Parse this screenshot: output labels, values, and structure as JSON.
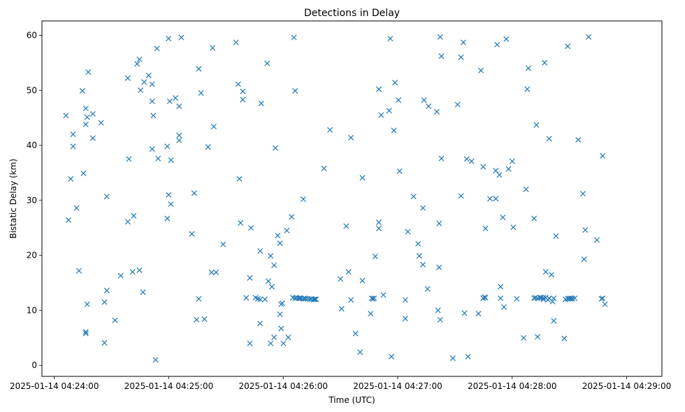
{
  "chart_data": {
    "type": "scatter",
    "title": "Detections in Delay",
    "xlabel": "Time (UTC)",
    "ylabel": "Bistatic Delay (km)",
    "marker": "x",
    "color": "#1f77b4",
    "grid": false,
    "x_tick_labels": [
      "2025-01-14 04:24:00",
      "2025-01-14 04:25:00",
      "2025-01-14 04:26:00",
      "2025-01-14 04:27:00",
      "2025-01-14 04:28:00",
      "2025-01-14 04:29:00"
    ],
    "y_ticks": [
      0,
      10,
      20,
      30,
      40,
      50,
      60
    ],
    "x_range_seconds_after_042400": [
      -6.5,
      318.5
    ],
    "ylim": [
      -2.0,
      62.6
    ],
    "points": [
      [
        6.1,
        45.4
      ],
      [
        7.4,
        26.4
      ],
      [
        8.6,
        33.9
      ],
      [
        9.8,
        39.8
      ],
      [
        9.8,
        42.0
      ],
      [
        11.6,
        28.6
      ],
      [
        12.9,
        17.2
      ],
      [
        14.7,
        49.9
      ],
      [
        15.3,
        34.9
      ],
      [
        16.5,
        46.7
      ],
      [
        16.5,
        43.8
      ],
      [
        16.5,
        6.1
      ],
      [
        16.5,
        5.8
      ],
      [
        17.2,
        45.1
      ],
      [
        17.2,
        11.1
      ],
      [
        17.8,
        53.3
      ],
      [
        20.2,
        45.7
      ],
      [
        20.2,
        41.3
      ],
      [
        24.5,
        44.1
      ],
      [
        26.3,
        4.1
      ],
      [
        26.3,
        11.5
      ],
      [
        27.5,
        13.6
      ],
      [
        27.5,
        30.7
      ],
      [
        31.8,
        8.2
      ],
      [
        34.8,
        16.3
      ],
      [
        38.5,
        52.2
      ],
      [
        38.5,
        26.1
      ],
      [
        39.1,
        37.5
      ],
      [
        41.0,
        17.0
      ],
      [
        41.6,
        27.2
      ],
      [
        43.4,
        54.8
      ],
      [
        44.6,
        55.6
      ],
      [
        44.6,
        17.3
      ],
      [
        45.2,
        50.0
      ],
      [
        46.5,
        13.3
      ],
      [
        47.1,
        51.5
      ],
      [
        49.5,
        52.7
      ],
      [
        51.3,
        51.1
      ],
      [
        51.3,
        48.0
      ],
      [
        51.9,
        45.4
      ],
      [
        51.3,
        39.3
      ],
      [
        53.1,
        1.0
      ],
      [
        53.8,
        57.6
      ],
      [
        54.4,
        37.6
      ],
      [
        59.2,
        39.8
      ],
      [
        59.2,
        26.7
      ],
      [
        59.9,
        59.4
      ],
      [
        59.9,
        31.0
      ],
      [
        60.5,
        48.0
      ],
      [
        61.1,
        37.3
      ],
      [
        61.1,
        29.3
      ],
      [
        63.5,
        48.6
      ],
      [
        65.4,
        47.1
      ],
      [
        65.4,
        41.8
      ],
      [
        65.4,
        40.9
      ],
      [
        66.6,
        59.6
      ],
      [
        72.1,
        23.9
      ],
      [
        73.3,
        31.3
      ],
      [
        74.5,
        8.3
      ],
      [
        75.7,
        12.1
      ],
      [
        75.7,
        53.9
      ],
      [
        76.9,
        49.5
      ],
      [
        78.7,
        8.4
      ],
      [
        80.6,
        39.7
      ],
      [
        82.4,
        16.9
      ],
      [
        83.0,
        57.7
      ],
      [
        83.6,
        43.4
      ],
      [
        84.8,
        16.9
      ],
      [
        88.5,
        22.0
      ],
      [
        95.2,
        58.7
      ],
      [
        96.4,
        51.1
      ],
      [
        97.0,
        33.9
      ],
      [
        97.6,
        25.9
      ],
      [
        98.8,
        48.3
      ],
      [
        98.8,
        49.8
      ],
      [
        100.6,
        12.3
      ],
      [
        102.5,
        15.9
      ],
      [
        102.5,
        4.0
      ],
      [
        103.1,
        25.0
      ],
      [
        105.5,
        12.3
      ],
      [
        106.7,
        12.1
      ],
      [
        107.9,
        12.0
      ],
      [
        107.9,
        7.6
      ],
      [
        107.9,
        20.8
      ],
      [
        108.5,
        47.6
      ],
      [
        110.4,
        12.0
      ],
      [
        111.6,
        54.9
      ],
      [
        112.2,
        15.3
      ],
      [
        113.4,
        19.9
      ],
      [
        113.4,
        4.0
      ],
      [
        114.0,
        14.3
      ],
      [
        115.2,
        5.1
      ],
      [
        115.2,
        18.2
      ],
      [
        115.9,
        39.5
      ],
      [
        117.1,
        23.6
      ],
      [
        118.3,
        9.3
      ],
      [
        118.3,
        22.2
      ],
      [
        118.9,
        11.1
      ],
      [
        118.9,
        6.7
      ],
      [
        119.5,
        11.3
      ],
      [
        120.1,
        4.0
      ],
      [
        121.9,
        24.5
      ],
      [
        122.6,
        5.1
      ],
      [
        124.4,
        27.0
      ],
      [
        125.0,
        12.3
      ],
      [
        125.6,
        59.6
      ],
      [
        126.2,
        12.2
      ],
      [
        126.2,
        49.9
      ],
      [
        126.8,
        12.3
      ],
      [
        128.0,
        12.2
      ],
      [
        128.6,
        12.2
      ],
      [
        129.2,
        12.2
      ],
      [
        130.5,
        12.1
      ],
      [
        130.5,
        30.2
      ],
      [
        131.1,
        12.2
      ],
      [
        131.7,
        12.1
      ],
      [
        132.9,
        12.1
      ],
      [
        134.1,
        12.0
      ],
      [
        134.7,
        12.1
      ],
      [
        135.9,
        12.0
      ],
      [
        136.6,
        12.0
      ],
      [
        137.2,
        12.0
      ],
      [
        141.4,
        35.8
      ],
      [
        144.5,
        42.8
      ],
      [
        150.0,
        15.7
      ],
      [
        150.6,
        10.3
      ],
      [
        153.0,
        25.3
      ],
      [
        154.2,
        17.0
      ],
      [
        155.5,
        11.9
      ],
      [
        155.5,
        41.4
      ],
      [
        157.9,
        5.8
      ],
      [
        160.3,
        2.4
      ],
      [
        161.5,
        15.4
      ],
      [
        161.5,
        34.1
      ],
      [
        165.8,
        9.4
      ],
      [
        166.4,
        12.2
      ],
      [
        167.0,
        12.1
      ],
      [
        167.6,
        12.2
      ],
      [
        168.2,
        19.8
      ],
      [
        170.1,
        26.0
      ],
      [
        170.1,
        24.9
      ],
      [
        170.1,
        50.2
      ],
      [
        171.3,
        45.5
      ],
      [
        172.5,
        12.8
      ],
      [
        175.5,
        46.3
      ],
      [
        176.1,
        59.4
      ],
      [
        176.7,
        1.6
      ],
      [
        178.0,
        42.7
      ],
      [
        178.6,
        51.4
      ],
      [
        180.4,
        48.2
      ],
      [
        181.0,
        35.3
      ],
      [
        184.0,
        11.9
      ],
      [
        184.0,
        8.5
      ],
      [
        185.3,
        24.3
      ],
      [
        188.3,
        30.7
      ],
      [
        190.7,
        22.1
      ],
      [
        191.3,
        19.9
      ],
      [
        193.2,
        18.3
      ],
      [
        193.2,
        28.6
      ],
      [
        193.8,
        48.2
      ],
      [
        195.6,
        13.9
      ],
      [
        196.2,
        47.1
      ],
      [
        200.5,
        46.1
      ],
      [
        201.1,
        10.0
      ],
      [
        201.7,
        25.8
      ],
      [
        201.7,
        17.8
      ],
      [
        202.3,
        59.7
      ],
      [
        202.3,
        8.3
      ],
      [
        202.9,
        56.2
      ],
      [
        202.9,
        37.6
      ],
      [
        208.9,
        1.3
      ],
      [
        211.4,
        47.4
      ],
      [
        213.2,
        30.8
      ],
      [
        213.2,
        56.0
      ],
      [
        214.4,
        58.7
      ],
      [
        215.0,
        9.5
      ],
      [
        216.2,
        37.5
      ],
      [
        216.9,
        1.6
      ],
      [
        218.7,
        37.1
      ],
      [
        222.3,
        9.4
      ],
      [
        223.6,
        53.6
      ],
      [
        224.8,
        36.1
      ],
      [
        224.8,
        12.2
      ],
      [
        225.4,
        12.4
      ],
      [
        226.0,
        24.9
      ],
      [
        226.0,
        12.3
      ],
      [
        228.4,
        30.3
      ],
      [
        231.4,
        35.4
      ],
      [
        231.4,
        30.3
      ],
      [
        232.1,
        58.3
      ],
      [
        233.3,
        34.6
      ],
      [
        233.9,
        12.2
      ],
      [
        233.9,
        14.3
      ],
      [
        235.1,
        26.9
      ],
      [
        235.7,
        10.6
      ],
      [
        236.9,
        59.3
      ],
      [
        238.1,
        35.7
      ],
      [
        240.0,
        37.1
      ],
      [
        240.6,
        25.1
      ],
      [
        242.4,
        12.1
      ],
      [
        246.0,
        5.0
      ],
      [
        247.3,
        32.0
      ],
      [
        247.9,
        50.2
      ],
      [
        248.5,
        54.0
      ],
      [
        251.5,
        12.2
      ],
      [
        251.5,
        26.7
      ],
      [
        252.1,
        12.3
      ],
      [
        252.7,
        43.7
      ],
      [
        253.3,
        12.2
      ],
      [
        253.3,
        5.2
      ],
      [
        254.5,
        12.3
      ],
      [
        255.1,
        12.3
      ],
      [
        256.3,
        12.3
      ],
      [
        256.3,
        12.0
      ],
      [
        257.0,
        55.0
      ],
      [
        257.6,
        12.3
      ],
      [
        257.6,
        17.0
      ],
      [
        258.8,
        11.9
      ],
      [
        259.4,
        12.2
      ],
      [
        259.4,
        41.2
      ],
      [
        260.6,
        16.5
      ],
      [
        261.2,
        11.6
      ],
      [
        261.8,
        12.2
      ],
      [
        261.8,
        8.1
      ],
      [
        263.0,
        23.5
      ],
      [
        267.3,
        4.9
      ],
      [
        267.9,
        12.0
      ],
      [
        269.1,
        12.1
      ],
      [
        269.1,
        58.0
      ],
      [
        269.8,
        12.2
      ],
      [
        270.4,
        12.1
      ],
      [
        271.0,
        12.2
      ],
      [
        271.6,
        12.1
      ],
      [
        272.8,
        12.2
      ],
      [
        274.6,
        41.0
      ],
      [
        277.1,
        31.2
      ],
      [
        277.7,
        19.3
      ],
      [
        278.3,
        24.6
      ],
      [
        280.1,
        59.7
      ],
      [
        284.4,
        22.8
      ],
      [
        286.8,
        12.1
      ],
      [
        287.4,
        38.1
      ],
      [
        287.4,
        12.2
      ],
      [
        288.6,
        11.1
      ]
    ]
  }
}
